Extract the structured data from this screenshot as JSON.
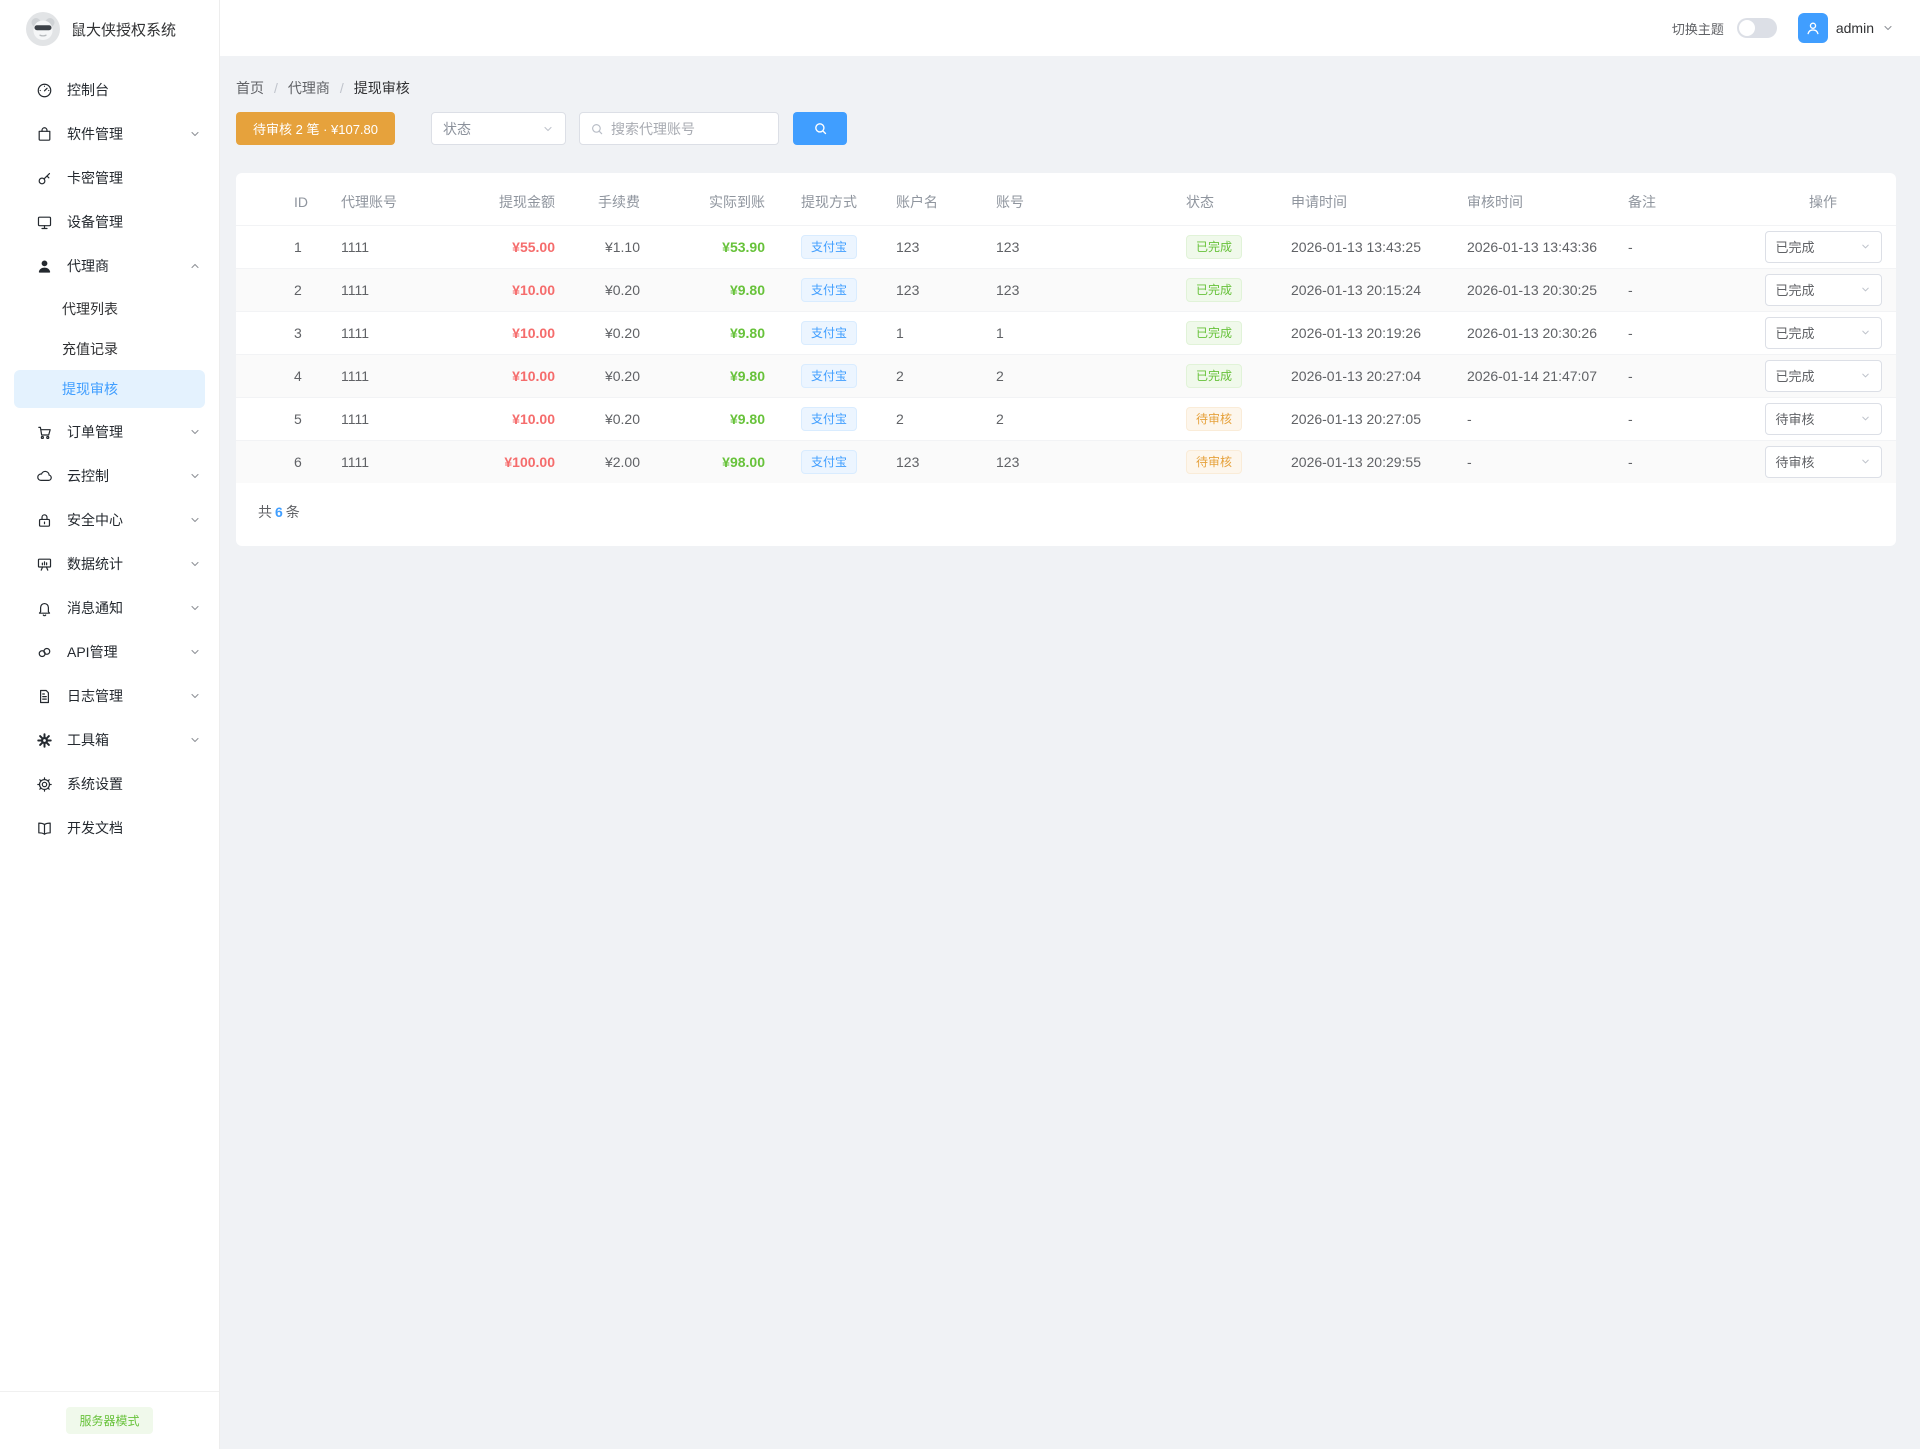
{
  "app": {
    "title": "鼠大侠授权系统",
    "mode_badge": "服务器模式"
  },
  "topbar": {
    "theme_label": "切换主题",
    "theme_toggle_on": false,
    "username": "admin"
  },
  "sidebar": {
    "items": [
      {
        "id": "dashboard",
        "label": "控制台",
        "icon": "dashboard-icon"
      },
      {
        "id": "software",
        "label": "软件管理",
        "icon": "software-icon",
        "chevron": "down"
      },
      {
        "id": "card-key",
        "label": "卡密管理",
        "icon": "key-icon"
      },
      {
        "id": "device",
        "label": "设备管理",
        "icon": "monitor-icon"
      },
      {
        "id": "agent",
        "label": "代理商",
        "icon": "user-icon",
        "chevron": "up",
        "expanded": true,
        "children": [
          {
            "id": "agent-list",
            "label": "代理列表",
            "active": false
          },
          {
            "id": "recharge-record",
            "label": "充值记录",
            "active": false
          },
          {
            "id": "withdraw-review",
            "label": "提现审核",
            "active": true
          }
        ]
      },
      {
        "id": "order",
        "label": "订单管理",
        "icon": "cart-icon",
        "chevron": "down"
      },
      {
        "id": "cloud",
        "label": "云控制",
        "icon": "cloud-icon",
        "chevron": "down"
      },
      {
        "id": "security",
        "label": "安全中心",
        "icon": "lock-icon",
        "chevron": "down"
      },
      {
        "id": "stats",
        "label": "数据统计",
        "icon": "chart-board-icon",
        "chevron": "down"
      },
      {
        "id": "notify",
        "label": "消息通知",
        "icon": "bell-icon",
        "chevron": "down"
      },
      {
        "id": "api",
        "label": "API管理",
        "icon": "link-icon",
        "chevron": "down"
      },
      {
        "id": "log",
        "label": "日志管理",
        "icon": "document-icon",
        "chevron": "down"
      },
      {
        "id": "toolbox",
        "label": "工具箱",
        "icon": "gear-filled-icon",
        "chevron": "down"
      },
      {
        "id": "settings",
        "label": "系统设置",
        "icon": "gear-icon"
      },
      {
        "id": "dev-docs",
        "label": "开发文档",
        "icon": "book-icon"
      }
    ]
  },
  "breadcrumb": {
    "items": [
      "首页",
      "代理商",
      "提现审核"
    ],
    "separator": "/"
  },
  "toolbar": {
    "pending_button": "待审核 2 笔 · ¥107.80",
    "status_placeholder": "状态",
    "search_placeholder": "搜索代理账号"
  },
  "table": {
    "columns": [
      "ID",
      "代理账号",
      "提现金额",
      "手续费",
      "实际到账",
      "提现方式",
      "账户名",
      "账号",
      "状态",
      "申请时间",
      "审核时间",
      "备注",
      "操作"
    ],
    "rows": [
      {
        "id": "1",
        "agent": "1111",
        "amount": "¥55.00",
        "fee": "¥1.10",
        "actual": "¥53.90",
        "method": "支付宝",
        "account_name": "123",
        "account_no": "123",
        "status": "已完成",
        "status_type": "done",
        "apply_time": "2026-01-13 13:43:25",
        "review_time": "2026-01-13 13:43:36",
        "remark": "-",
        "action": "已完成"
      },
      {
        "id": "2",
        "agent": "1111",
        "amount": "¥10.00",
        "fee": "¥0.20",
        "actual": "¥9.80",
        "method": "支付宝",
        "account_name": "123",
        "account_no": "123",
        "status": "已完成",
        "status_type": "done",
        "apply_time": "2026-01-13 20:15:24",
        "review_time": "2026-01-13 20:30:25",
        "remark": "-",
        "action": "已完成"
      },
      {
        "id": "3",
        "agent": "1111",
        "amount": "¥10.00",
        "fee": "¥0.20",
        "actual": "¥9.80",
        "method": "支付宝",
        "account_name": "1",
        "account_no": "1",
        "status": "已完成",
        "status_type": "done",
        "apply_time": "2026-01-13 20:19:26",
        "review_time": "2026-01-13 20:30:26",
        "remark": "-",
        "action": "已完成"
      },
      {
        "id": "4",
        "agent": "1111",
        "amount": "¥10.00",
        "fee": "¥0.20",
        "actual": "¥9.80",
        "method": "支付宝",
        "account_name": "2",
        "account_no": "2",
        "status": "已完成",
        "status_type": "done",
        "apply_time": "2026-01-13 20:27:04",
        "review_time": "2026-01-14 21:47:07",
        "remark": "-",
        "action": "已完成"
      },
      {
        "id": "5",
        "agent": "1111",
        "amount": "¥10.00",
        "fee": "¥0.20",
        "actual": "¥9.80",
        "method": "支付宝",
        "account_name": "2",
        "account_no": "2",
        "status": "待审核",
        "status_type": "pending",
        "apply_time": "2026-01-13 20:27:05",
        "review_time": "-",
        "remark": "-",
        "action": "待审核"
      },
      {
        "id": "6",
        "agent": "1111",
        "amount": "¥100.00",
        "fee": "¥2.00",
        "actual": "¥98.00",
        "method": "支付宝",
        "account_name": "123",
        "account_no": "123",
        "status": "待审核",
        "status_type": "pending",
        "apply_time": "2026-01-13 20:29:55",
        "review_time": "-",
        "remark": "-",
        "action": "待审核"
      }
    ],
    "total_prefix": "共",
    "total_count": "6",
    "total_suffix": "条"
  },
  "colors": {
    "accent": "#409eff",
    "success": "#67c23a",
    "warning": "#e6a23c",
    "danger": "#f56c6c"
  }
}
